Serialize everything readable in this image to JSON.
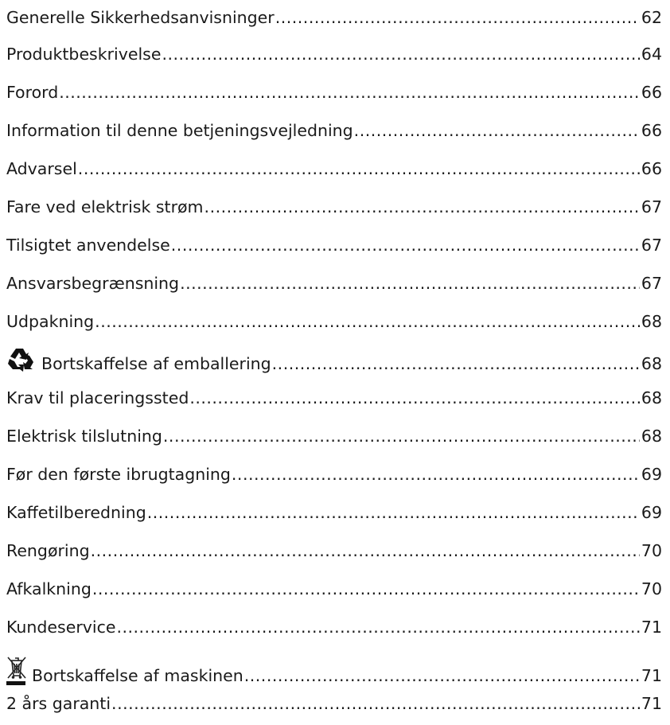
{
  "toc": [
    {
      "title": "Generelle Sikkerhedsanvisninger",
      "page": "62"
    },
    {
      "title": "Produktbeskrivelse",
      "page": "64"
    },
    {
      "title": "Forord",
      "page": "66"
    },
    {
      "title": "Information til denne betjeningsvejledning",
      "page": "66"
    },
    {
      "title": "Advarsel",
      "page": "66"
    },
    {
      "title": "Fare ved elektrisk strøm",
      "page": "67"
    },
    {
      "title": "Tilsigtet anvendelse",
      "page": "67"
    },
    {
      "title": "Ansvarsbegrænsning",
      "page": "67"
    },
    {
      "title": "Udpakning",
      "page": "68"
    },
    {
      "title": "Bortskaffelse af emballering",
      "page": "68",
      "icon": "recycle-icon"
    },
    {
      "title": "Krav til placeringssted",
      "page": "68"
    },
    {
      "title": "Elektrisk tilslutning",
      "page": "68"
    },
    {
      "title": "Før den første ibrugtagning",
      "page": "69"
    },
    {
      "title": "Kaffetilberedning",
      "page": "69"
    },
    {
      "title": "Rengøring",
      "page": "70"
    },
    {
      "title": "Afkalkning",
      "page": "70"
    },
    {
      "title": "Kundeservice",
      "page": "71"
    },
    {
      "title": "Bortskaffelse af maskinen",
      "page": "71",
      "icon": "crossed-out-bin-icon"
    },
    {
      "title": "2 års garanti",
      "page": "71"
    }
  ]
}
